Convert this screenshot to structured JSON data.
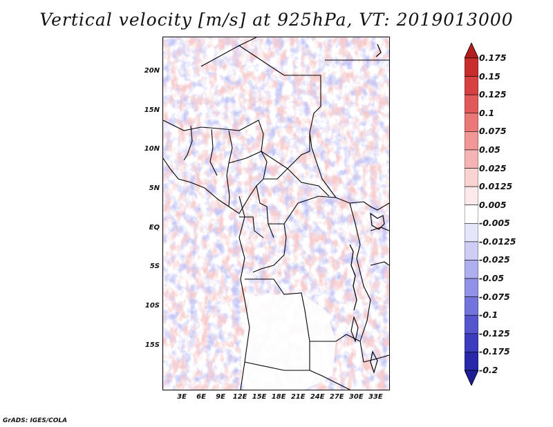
{
  "title": "Vertical velocity [m/s] at 925hPa, VT: 2019013000",
  "credit": "GrADS: IGES/COLA",
  "map": {
    "lat_range": [
      -20.5,
      24.5
    ],
    "lon_range": [
      0,
      35
    ],
    "lat_labels": [
      {
        "text": "20N",
        "value": 20
      },
      {
        "text": "15N",
        "value": 15
      },
      {
        "text": "10N",
        "value": 10
      },
      {
        "text": "5N",
        "value": 5
      },
      {
        "text": "EQ",
        "value": 0
      },
      {
        "text": "5S",
        "value": -5
      },
      {
        "text": "10S",
        "value": -10
      },
      {
        "text": "15S",
        "value": -15
      }
    ],
    "lon_labels": [
      {
        "text": "3E",
        "value": 3
      },
      {
        "text": "6E",
        "value": 6
      },
      {
        "text": "9E",
        "value": 9
      },
      {
        "text": "12E",
        "value": 12
      },
      {
        "text": "15E",
        "value": 15
      },
      {
        "text": "18E",
        "value": 18
      },
      {
        "text": "21E",
        "value": 21
      },
      {
        "text": "24E",
        "value": 24
      },
      {
        "text": "27E",
        "value": 27
      },
      {
        "text": "30E",
        "value": 30
      },
      {
        "text": "33E",
        "value": 33
      }
    ]
  },
  "colorbar": {
    "labels": [
      "0.175",
      "0.15",
      "0.125",
      "0.1",
      "0.075",
      "0.05",
      "0.025",
      "0.0125",
      "0.005",
      "-0.005",
      "-0.0125",
      "-0.025",
      "-0.05",
      "-0.075",
      "-0.1",
      "-0.125",
      "-0.175",
      "-0.2"
    ],
    "colors": [
      "#b41e1e",
      "#c82d2d",
      "#d74141",
      "#e15a5a",
      "#eb7878",
      "#f09696",
      "#f5b4b4",
      "#f9d2d2",
      "#fceaea",
      "#ffffff",
      "#e6e6fa",
      "#cdcdf5",
      "#afafef",
      "#9191e6",
      "#7373dc",
      "#5555cd",
      "#3c3cbe",
      "#2828a8",
      "#1e1e96"
    ]
  }
}
